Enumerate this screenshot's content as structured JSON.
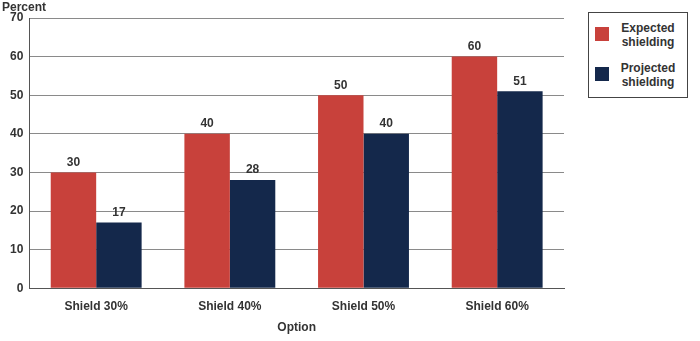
{
  "chart_data": {
    "type": "bar",
    "categories": [
      "Shield 30%",
      "Shield 40%",
      "Shield 50%",
      "Shield 60%"
    ],
    "series": [
      {
        "name": "Expected shielding",
        "color": "#c8413b",
        "values": [
          30,
          40,
          50,
          60
        ]
      },
      {
        "name": "Projected shielding",
        "color": "#14284b",
        "values": [
          17,
          28,
          40,
          51
        ]
      }
    ],
    "y_label": "Percent",
    "x_label": "Option",
    "ylim": [
      0,
      70
    ],
    "yticks": [
      0,
      10,
      20,
      30,
      40,
      50,
      60,
      70
    ],
    "grid": true,
    "legend": "right",
    "data_labels": true
  }
}
